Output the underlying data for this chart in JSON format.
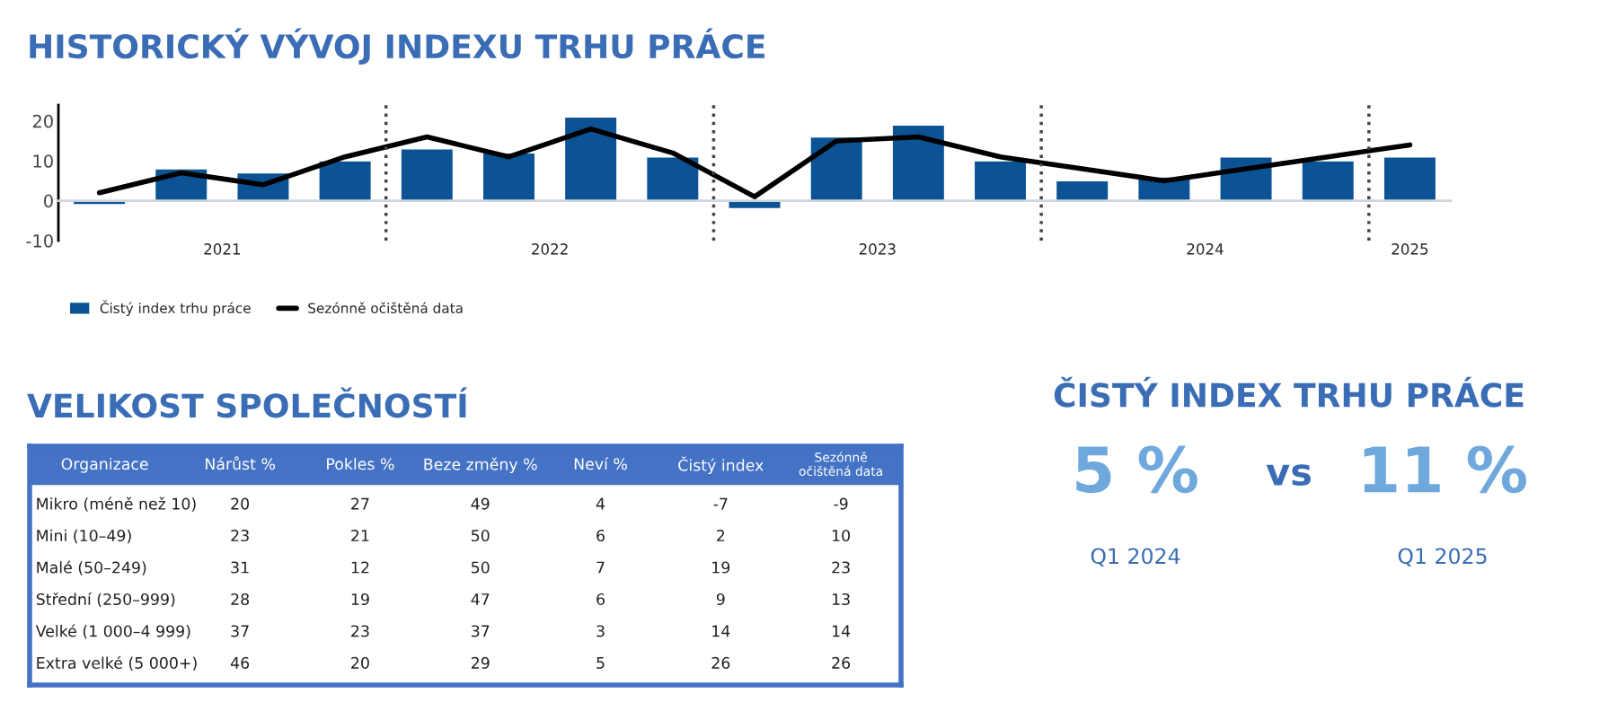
{
  "chart_data": [
    {
      "type": "bar",
      "title": "HISTORICKÝ VÝVOJ INDEXU TRHU PRÁCE",
      "x": [
        2021.125,
        2021.375,
        2021.625,
        2021.875,
        2022.125,
        2022.375,
        2022.625,
        2022.875,
        2023.125,
        2023.375,
        2023.625,
        2023.875,
        2024.125,
        2024.375,
        2024.625,
        2024.875,
        2025.125
      ],
      "series": [
        {
          "name": "Čistý index trhu práce",
          "type": "bar",
          "color": "#0b5394",
          "values": [
            -1,
            8,
            7,
            10,
            13,
            12,
            21,
            11,
            -2,
            16,
            19,
            10,
            5,
            6,
            11,
            10,
            11
          ]
        },
        {
          "name": "Sezónně očištěná data",
          "type": "line",
          "color": "#000000",
          "values": [
            2,
            7,
            4,
            11,
            16,
            11,
            18,
            12,
            1,
            15,
            16,
            11,
            8,
            5,
            8,
            11,
            14
          ]
        }
      ],
      "xlim": [
        2021,
        2025.25
      ],
      "xticks": [
        {
          "value": 2021.5,
          "label": "2021"
        },
        {
          "value": 2022.5,
          "label": "2022"
        },
        {
          "value": 2023.5,
          "label": "2023"
        },
        {
          "value": 2024.5,
          "label": "2024"
        },
        {
          "value": 2025.125,
          "label": "2025"
        }
      ],
      "ylim": [
        -10,
        24
      ],
      "yticks": [
        -10,
        0,
        10,
        20
      ],
      "ref_lines": [
        {
          "axis": "x",
          "value": 2022,
          "color": "#444444",
          "line_style": "dotted"
        },
        {
          "axis": "x",
          "value": 2023,
          "color": "#444444",
          "line_style": "dotted"
        },
        {
          "axis": "x",
          "value": 2024,
          "color": "#444444",
          "line_style": "dotted"
        },
        {
          "axis": "x",
          "value": 2025,
          "color": "#444444",
          "line_style": "dotted"
        }
      ],
      "legend": "bottom left",
      "marker": "none"
    },
    {
      "type": "heatmap",
      "title": "VELIKOST SPOLEČNOSTÍ",
      "ylabel": "Organizace",
      "categories": [
        "Nárůst %",
        "Pokles %",
        "Beze změny %",
        "Neví %",
        "Čistý index",
        "Sezónně\nočištěná data"
      ],
      "y_categories": [
        "Mikro (méně než 10)",
        "Mini (10–49)",
        "Malé (50–249)",
        "Střední (250–999)",
        "Velké (1 000–4 999)",
        "Extra velké (5 000+)"
      ],
      "cells": [
        [
          20,
          27,
          49,
          4,
          -7,
          -9
        ],
        [
          23,
          21,
          50,
          6,
          2,
          10
        ],
        [
          31,
          12,
          50,
          7,
          19,
          23
        ],
        [
          28,
          19,
          47,
          6,
          9,
          13
        ],
        [
          37,
          23,
          37,
          3,
          14,
          14
        ],
        [
          46,
          20,
          29,
          5,
          26,
          26
        ]
      ],
      "data_labels": true
    },
    {
      "type": "other",
      "title": "ČISTÝ INDEX TRHU PRÁCE",
      "annotations": [
        "5 %",
        "vs",
        "11 %",
        "Q1 2024",
        "Q1 2025"
      ]
    }
  ]
}
